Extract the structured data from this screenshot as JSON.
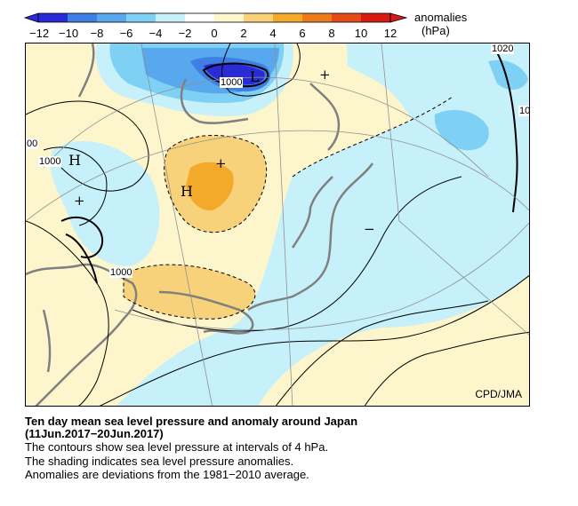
{
  "legend": {
    "title": "anomalies",
    "unit": "(hPa)",
    "ticks": [
      "−12",
      "−10",
      "−8",
      "−6",
      "−4",
      "−2",
      "0",
      "2",
      "4",
      "6",
      "8",
      "10",
      "12"
    ],
    "colors": [
      "#2b2bd6",
      "#3f7fe3",
      "#58a8ee",
      "#7fd0f5",
      "#c6f0fa",
      "#ffffff",
      "#fdf6cc",
      "#f8d27b",
      "#f3a92a",
      "#ec7b1c",
      "#e54b18",
      "#d81a14"
    ]
  },
  "map": {
    "credit": "CPD/JMA",
    "contour_labels": [
      "1000",
      "1000",
      "1000",
      "1020",
      "10",
      "00"
    ],
    "pressure_centers": [
      "L",
      "H",
      "H"
    ],
    "anomaly_signs": [
      "+",
      "+",
      "+",
      "−"
    ]
  },
  "caption": {
    "title": "Ten day mean sea level pressure and anomaly around Japan",
    "period": "(11Jun.2017−20Jun.2017)",
    "line1": "The contours show sea level pressure at intervals of 4 hPa.",
    "line2": "The shading indicates sea level pressure anomalies.",
    "line3": "Anomalies are deviations from the 1981−2010 average."
  }
}
